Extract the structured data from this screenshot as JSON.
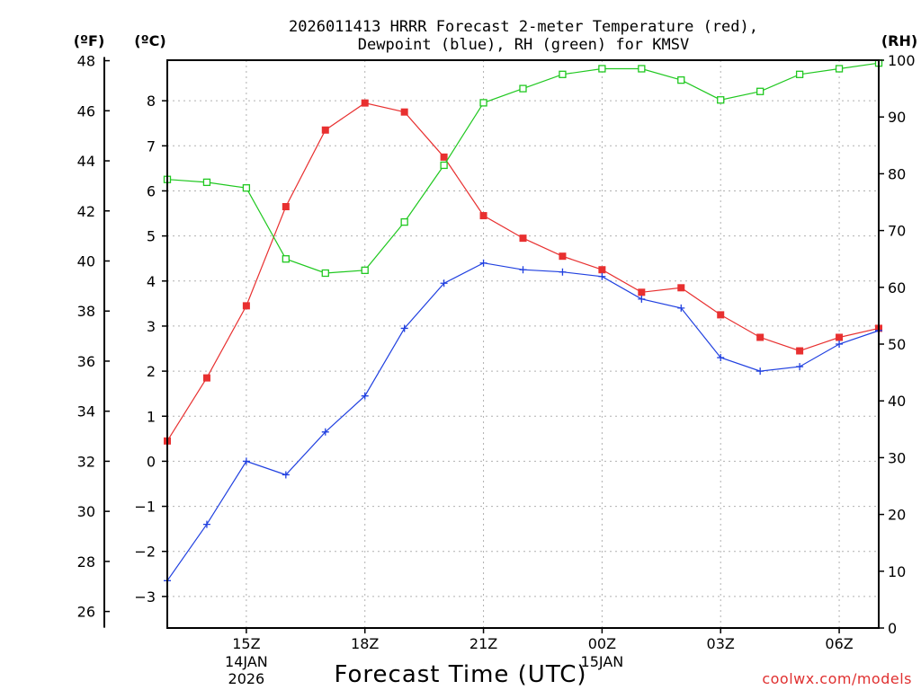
{
  "chart_data": {
    "type": "line",
    "title": [
      "2026011413 HRRR Forecast 2-meter Temperature (red),",
      "Dewpoint (blue), RH (green) for KMSV"
    ],
    "xlabel": "Forecast Time (UTC)",
    "credit": "coolwx.com/models",
    "units": {
      "fahrenheit": "(ºF)",
      "celsius": "(ºC)",
      "rh": "(RH)"
    },
    "x": [
      13,
      14,
      15,
      16,
      17,
      18,
      19,
      20,
      21,
      22,
      23,
      24,
      25,
      26,
      27,
      28,
      29,
      30,
      31
    ],
    "xlim": [
      13,
      31
    ],
    "x_ticks": [
      {
        "x": 15,
        "label": "15Z",
        "sub": [
          "14JAN",
          "2026"
        ]
      },
      {
        "x": 18,
        "label": "18Z",
        "sub": []
      },
      {
        "x": 21,
        "label": "21Z",
        "sub": []
      },
      {
        "x": 24,
        "label": "00Z",
        "sub": [
          "15JAN"
        ]
      },
      {
        "x": 27,
        "label": "03Z",
        "sub": []
      },
      {
        "x": 30,
        "label": "06Z",
        "sub": []
      }
    ],
    "ylim_c": [
      -3.7,
      8.9
    ],
    "yticks_c": [
      -3,
      -2,
      -1,
      0,
      1,
      2,
      3,
      4,
      5,
      6,
      7,
      8
    ],
    "yticks_f": [
      26,
      28,
      30,
      32,
      34,
      36,
      38,
      40,
      42,
      44,
      46,
      48
    ],
    "ylim_rh": [
      0,
      100
    ],
    "yticks_rh": [
      0,
      10,
      20,
      30,
      40,
      50,
      60,
      70,
      80,
      90,
      100
    ],
    "series": [
      {
        "name": "Temperature",
        "axis": "celsius",
        "color": "#e83030",
        "marker": "filled-square",
        "values": [
          0.45,
          1.85,
          3.45,
          5.65,
          7.35,
          7.95,
          7.75,
          6.75,
          5.45,
          4.95,
          4.55,
          4.25,
          3.75,
          3.85,
          3.25,
          2.75,
          2.45,
          2.75,
          2.95
        ]
      },
      {
        "name": "Dewpoint",
        "axis": "celsius",
        "color": "#2040e0",
        "marker": "plus",
        "values": [
          -2.65,
          -1.4,
          0.0,
          -0.3,
          0.65,
          1.45,
          2.95,
          3.95,
          4.4,
          4.25,
          4.2,
          4.1,
          3.6,
          3.4,
          2.3,
          2.0,
          2.1,
          2.6,
          2.9
        ]
      },
      {
        "name": "RH",
        "axis": "rh",
        "color": "#20c820",
        "marker": "open-square",
        "values": [
          79,
          78.5,
          77.5,
          65,
          62.5,
          63,
          71.5,
          81.5,
          92.5,
          95,
          97.5,
          98.5,
          98.5,
          96.5,
          93,
          94.5,
          97.5,
          98.5,
          99.5
        ]
      }
    ]
  }
}
